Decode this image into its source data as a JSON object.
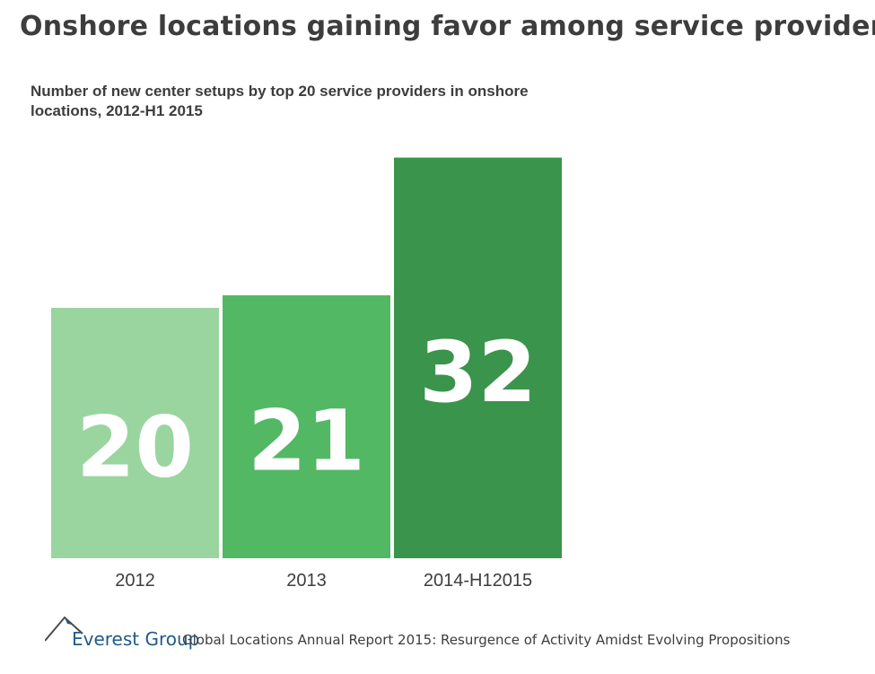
{
  "title": "Onshore locations gaining favor among service providers",
  "subtitle": "Number of new center setups by top 20 service providers in onshore locations, 2012-H1 2015",
  "footer": {
    "brand": "Everest Group",
    "report": "Global Locations Annual Report 2015: Resurgence of Activity Amidst Evolving Propositions"
  },
  "colors": {
    "bar_2012": "#9ad5a0",
    "bar_2013": "#52b864",
    "bar_2014": "#3a944b",
    "value_text": "#ffffff",
    "axis_text": "#3d3d3d"
  },
  "chart_data": {
    "type": "bar",
    "categories": [
      "2012",
      "2013",
      "2014-H12015"
    ],
    "values": [
      20,
      21,
      32
    ],
    "value_labels": [
      "20",
      "21",
      "32"
    ],
    "xlabel": "",
    "ylabel": "",
    "grid": false,
    "legend": "none"
  }
}
